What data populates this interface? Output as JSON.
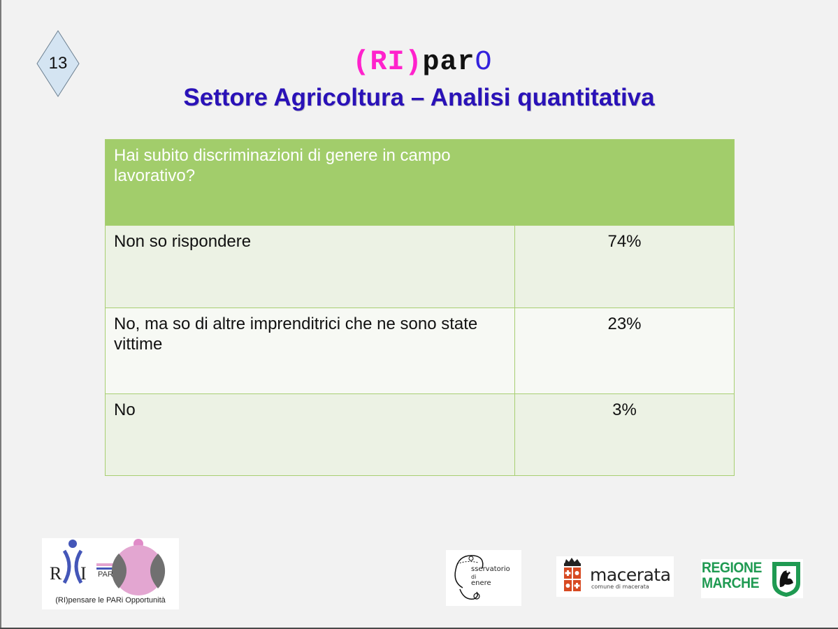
{
  "slide": {
    "number": "13",
    "brand": {
      "part1": "(RI)",
      "part2": "par",
      "part3": "O"
    },
    "subtitle": "Settore Agricoltura – Analisi quantitativa"
  },
  "table": {
    "question": "Hai subito discriminazioni di genere in campo lavorativo?",
    "rows": [
      {
        "answer": "Non so rispondere",
        "value": "74%"
      },
      {
        "answer": "No, ma so di altre imprenditrici che ne sono state vittime",
        "value": "23%"
      },
      {
        "answer": "No",
        "value": "3%"
      }
    ]
  },
  "logos": {
    "riparo": {
      "letter_r": "R",
      "letter_i": "I",
      "par": "PAR",
      "caption": "(RI)pensare le PARi Opportunità"
    },
    "osservatorio": {
      "line1": "sservatorio",
      "line2": "di",
      "line3": "enere"
    },
    "macerata": {
      "name": "macerata",
      "sub": "comune di macerata"
    },
    "regione": {
      "line1": "REGIONE",
      "line2": "MARCHE"
    }
  },
  "colors": {
    "header_green": "#a2cd6b",
    "title_blue": "#2a12b8",
    "brand_pink": "#ff22cc",
    "regione_green": "#1f9a52"
  }
}
